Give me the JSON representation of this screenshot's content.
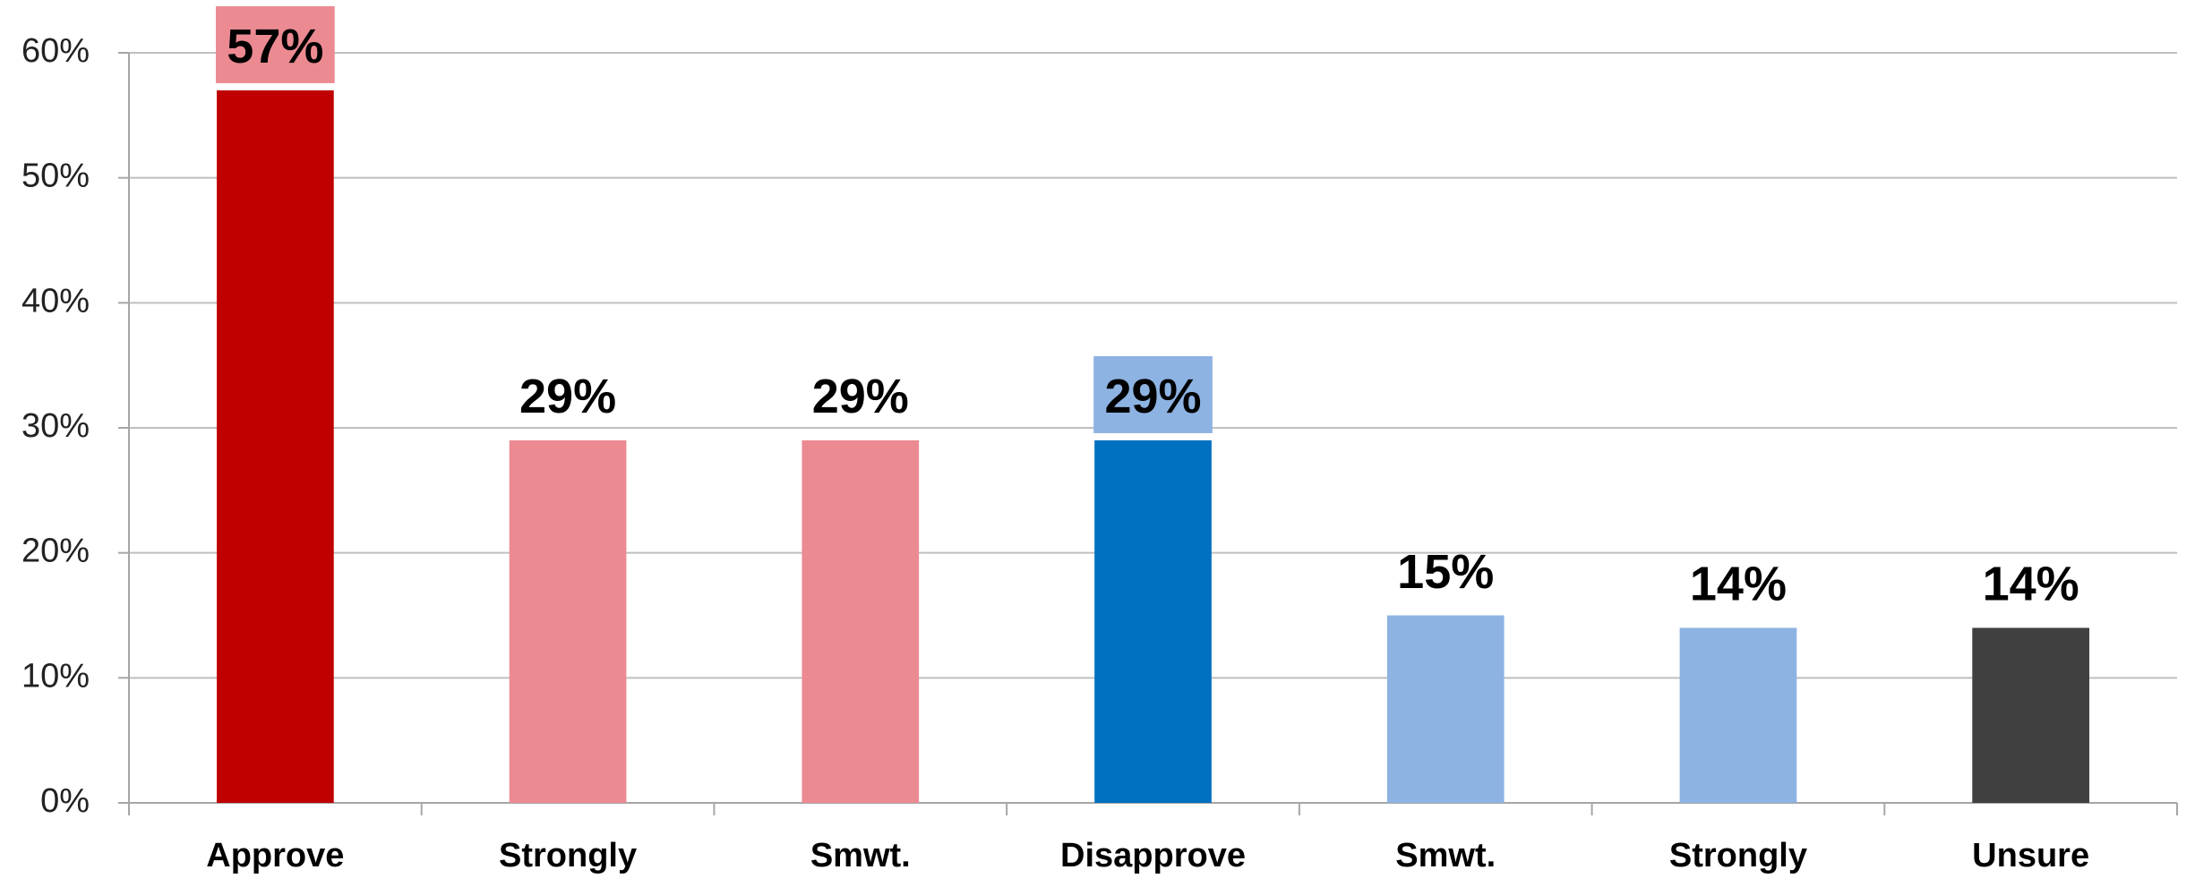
{
  "chart_data": {
    "type": "bar",
    "categories": [
      "Approve",
      "Strongly",
      "Smwt.",
      "Disapprove",
      "Smwt.",
      "Strongly",
      "Unsure"
    ],
    "values": [
      57,
      29,
      29,
      29,
      15,
      14,
      14
    ],
    "value_labels": [
      "57%",
      "29%",
      "29%",
      "29%",
      "15%",
      "14%",
      "14%"
    ],
    "colors": [
      "#c00000",
      "#ec8a92",
      "#ec8a92",
      "#0070c0",
      "#8db3e2",
      "#8db3e2",
      "#404040"
    ],
    "label_box_colors": [
      "#ec8a92",
      null,
      null,
      "#8db3e2",
      null,
      null,
      null
    ],
    "ylim": [
      0,
      60
    ],
    "yticks": [
      {
        "value": 0,
        "label": "0%"
      },
      {
        "value": 10,
        "label": "10%"
      },
      {
        "value": 20,
        "label": "20%"
      },
      {
        "value": 30,
        "label": "30%"
      },
      {
        "value": 40,
        "label": "40%"
      },
      {
        "value": 50,
        "label": "50%"
      },
      {
        "value": 60,
        "label": "60%"
      }
    ],
    "grid": true
  }
}
